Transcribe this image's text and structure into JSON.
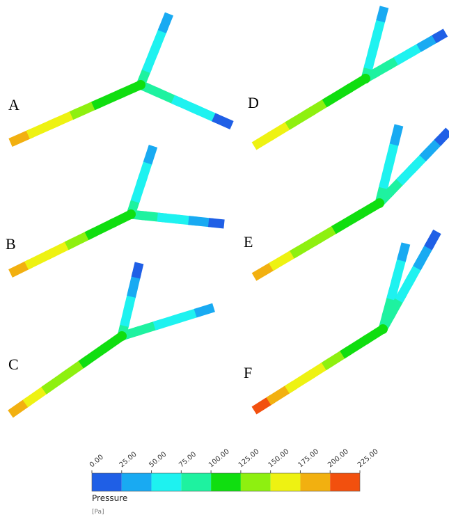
{
  "panels": [
    {
      "label": "A"
    },
    {
      "label": "B"
    },
    {
      "label": "C"
    },
    {
      "label": "D"
    },
    {
      "label": "E"
    },
    {
      "label": "F"
    }
  ],
  "colorbar": {
    "title": "Pressure",
    "unit": "[Pa]",
    "lim": [
      0,
      225
    ],
    "ticks": [
      {
        "value": 0,
        "label": "0.00"
      },
      {
        "value": 25,
        "label": "25.00"
      },
      {
        "value": 50,
        "label": "50.00"
      },
      {
        "value": 75,
        "label": "75.00"
      },
      {
        "value": 100,
        "label": "100.00"
      },
      {
        "value": 125,
        "label": "125.00"
      },
      {
        "value": 150,
        "label": "150.00"
      },
      {
        "value": 175,
        "label": "175.00"
      },
      {
        "value": 200,
        "label": "200.00"
      },
      {
        "value": 225,
        "label": "225.00"
      }
    ],
    "colors": [
      "#1f5fe6",
      "#19aaf2",
      "#1ef2f0",
      "#1ef2a0",
      "#10de10",
      "#8ef010",
      "#eef212",
      "#f2b010",
      "#f2500e"
    ]
  }
}
